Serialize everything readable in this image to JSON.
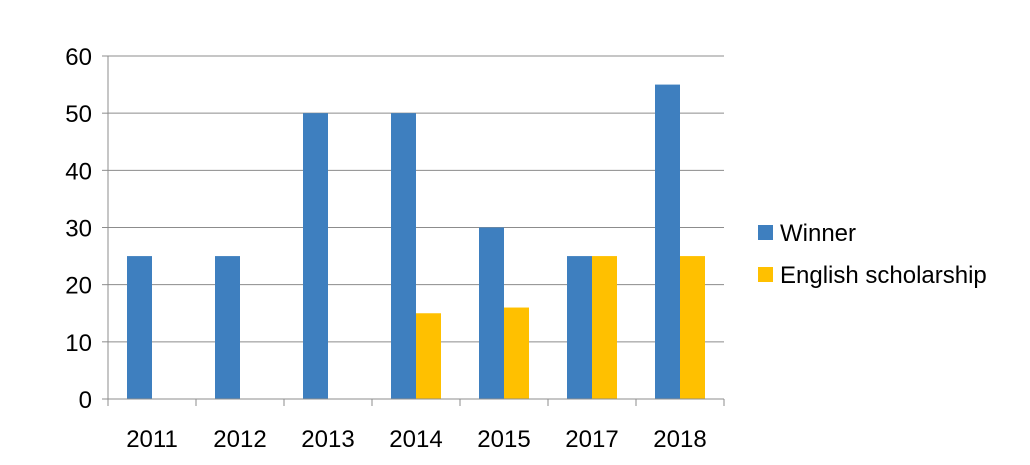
{
  "chart_data": {
    "type": "bar",
    "title": "",
    "xlabel": "",
    "ylabel": "",
    "categories": [
      "2011",
      "2012",
      "2013",
      "2014",
      "2015",
      "2017",
      "2018"
    ],
    "series": [
      {
        "name": "Winner",
        "color": "#3E7FBF",
        "values": [
          25,
          25,
          50,
          50,
          30,
          25,
          55
        ]
      },
      {
        "name": "English scholarship",
        "color": "#FFC000",
        "values": [
          null,
          null,
          null,
          15,
          16,
          25,
          25
        ]
      }
    ],
    "ylim": [
      0,
      60
    ],
    "yticks": [
      0,
      10,
      20,
      30,
      40,
      50,
      60
    ],
    "grid": true,
    "legend_position": "right"
  }
}
